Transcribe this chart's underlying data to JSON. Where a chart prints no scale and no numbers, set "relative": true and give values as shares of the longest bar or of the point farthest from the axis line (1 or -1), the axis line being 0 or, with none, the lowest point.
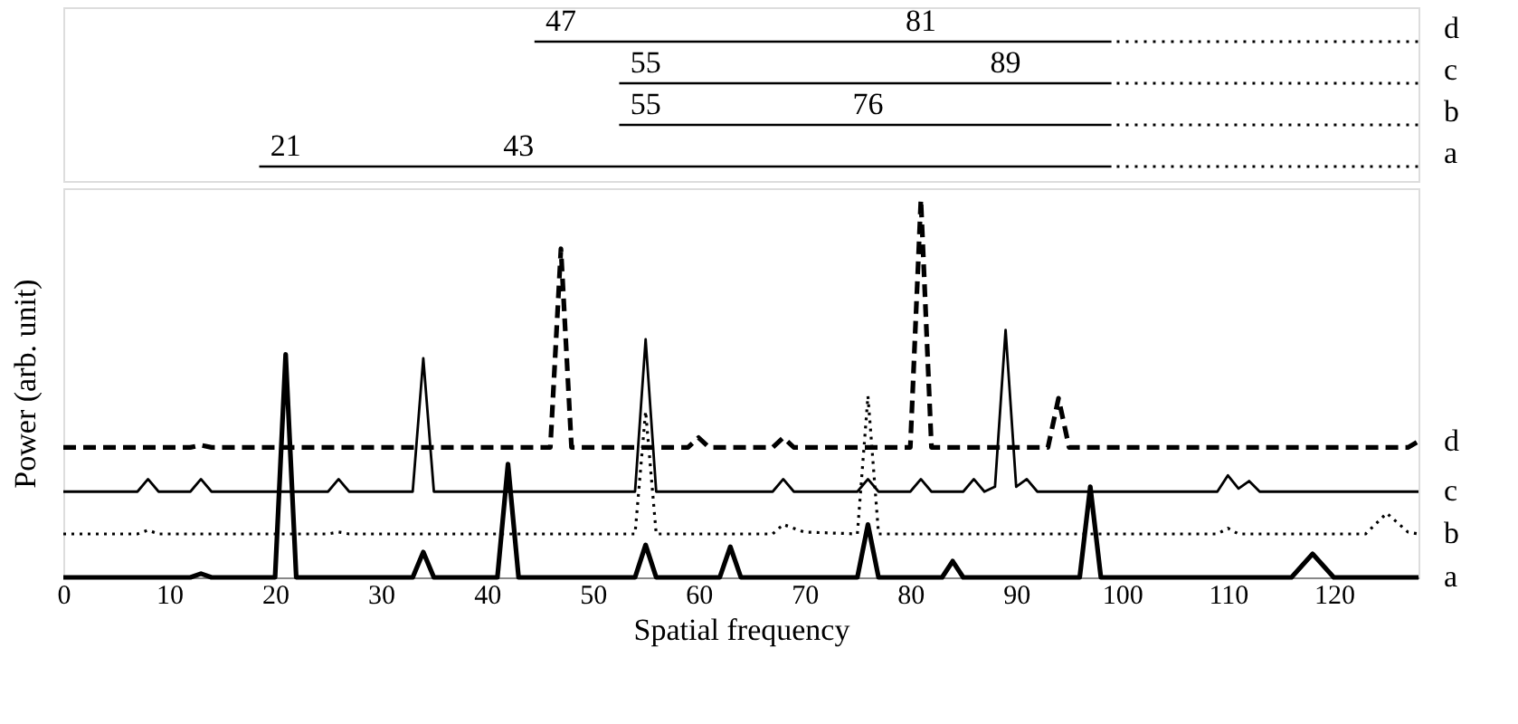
{
  "chart_data": {
    "type": "line",
    "relative": true,
    "xlabel": "Spatial frequency",
    "ylabel": "Power (arb. unit)",
    "xlim": [
      0,
      128
    ],
    "xticks": [
      0,
      10,
      20,
      30,
      40,
      50,
      60,
      70,
      80,
      90,
      100,
      110,
      120
    ],
    "tick_labels": "x",
    "grid": false,
    "marker": "none",
    "annotations": [
      "47",
      "81",
      "55",
      "89",
      "55",
      "76",
      "21",
      "43"
    ],
    "series": [
      {
        "name": "a",
        "color": "#000000",
        "line_style": "solid",
        "x": [
          0,
          12,
          13,
          14,
          20,
          21,
          22,
          33,
          34,
          35,
          41,
          42,
          43,
          54,
          55,
          56,
          62,
          63,
          64,
          75,
          76,
          77,
          83,
          84,
          85,
          96,
          97,
          98,
          116,
          118,
          120,
          128
        ],
        "values": [
          0,
          0,
          0.01,
          0,
          0,
          0.59,
          0,
          0,
          0.067,
          0,
          0,
          0.3,
          0,
          0,
          0.086,
          0,
          0,
          0.081,
          0,
          0,
          0.14,
          0,
          0,
          0.043,
          0,
          0,
          0.24,
          0,
          0,
          0.062,
          0,
          0
        ]
      },
      {
        "name": "b",
        "color": "#000000",
        "line_style": "dotted",
        "x": [
          0,
          7,
          8,
          9,
          25,
          26,
          27,
          54,
          55,
          56,
          67,
          68,
          70,
          75,
          76,
          77,
          109,
          110,
          111,
          123,
          125,
          127,
          128
        ],
        "values": [
          0.115,
          0.115,
          0.125,
          0.115,
          0.115,
          0.12,
          0.115,
          0.115,
          0.44,
          0.115,
          0.115,
          0.14,
          0.12,
          0.115,
          0.48,
          0.115,
          0.115,
          0.13,
          0.115,
          0.115,
          0.17,
          0.12,
          0.115
        ]
      },
      {
        "name": "c",
        "color": "#000000",
        "line_style": "solid",
        "x": [
          0,
          7,
          8,
          9,
          12,
          13,
          14,
          25,
          26,
          27,
          33,
          34,
          35,
          54,
          55,
          56,
          67,
          68,
          69,
          75,
          76,
          77,
          80,
          81,
          82,
          85,
          86,
          87,
          88,
          89,
          90,
          91,
          92,
          109,
          110,
          111,
          112,
          113,
          128
        ],
        "values": [
          0.227,
          0.227,
          0.26,
          0.227,
          0.227,
          0.26,
          0.227,
          0.227,
          0.26,
          0.227,
          0.227,
          0.58,
          0.227,
          0.227,
          0.63,
          0.227,
          0.227,
          0.26,
          0.227,
          0.227,
          0.26,
          0.227,
          0.227,
          0.26,
          0.227,
          0.227,
          0.26,
          0.227,
          0.24,
          0.655,
          0.24,
          0.26,
          0.227,
          0.227,
          0.27,
          0.235,
          0.255,
          0.227,
          0.227
        ]
      },
      {
        "name": "d",
        "color": "#000000",
        "line_style": "dashed",
        "x": [
          0,
          12,
          13,
          14,
          46,
          47,
          48,
          59,
          60,
          61,
          67,
          68,
          69,
          80,
          81,
          82,
          93,
          94,
          95,
          127,
          128
        ],
        "values": [
          0.344,
          0.344,
          0.35,
          0.344,
          0.344,
          0.87,
          0.344,
          0.344,
          0.37,
          0.344,
          0.344,
          0.37,
          0.344,
          0.344,
          1.0,
          0.344,
          0.344,
          0.474,
          0.344,
          0.344,
          0.36
        ]
      }
    ]
  }
}
